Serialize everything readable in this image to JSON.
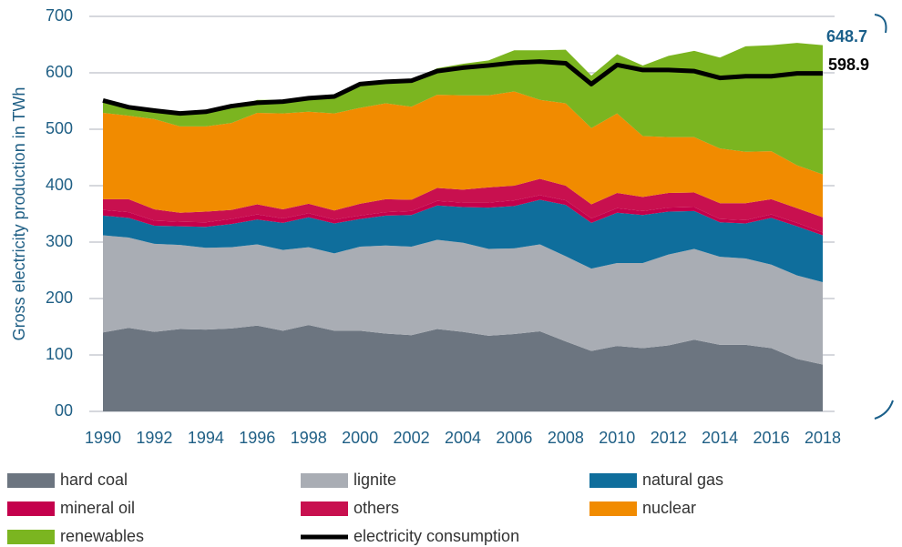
{
  "chart_data": {
    "type": "area",
    "stacked": true,
    "y_label": "Gross electricity production in TWh",
    "x": [
      1990,
      1991,
      1992,
      1993,
      1994,
      1995,
      1996,
      1997,
      1998,
      1999,
      2000,
      2001,
      2002,
      2003,
      2004,
      2005,
      2006,
      2007,
      2008,
      2009,
      2010,
      2011,
      2012,
      2013,
      2014,
      2015,
      2016,
      2017,
      2018
    ],
    "xlim": [
      1990,
      2018
    ],
    "xticks": [
      1990,
      1992,
      1994,
      1996,
      1998,
      2000,
      2002,
      2004,
      2006,
      2008,
      2010,
      2012,
      2014,
      2016,
      2018
    ],
    "ylim": [
      0,
      700
    ],
    "yticks": [
      {
        "value": 0,
        "label": "00"
      },
      100,
      200,
      300,
      400,
      500,
      600,
      700
    ],
    "grid": true,
    "series": [
      {
        "name": "hard coal",
        "color": "#6c7580",
        "values": [
          140,
          148,
          141,
          146,
          145,
          147,
          152,
          143,
          153,
          143,
          143,
          138,
          135,
          146,
          141,
          134,
          137,
          142,
          124,
          107,
          116,
          112,
          117,
          127,
          118,
          118,
          112,
          93,
          83
        ]
      },
      {
        "name": "lignite",
        "color": "#a9adb4",
        "values": [
          172,
          160,
          156,
          149,
          145,
          144,
          144,
          143,
          138,
          137,
          149,
          156,
          157,
          158,
          158,
          154,
          152,
          154,
          151,
          146,
          147,
          151,
          161,
          161,
          156,
          153,
          148,
          148,
          146
        ]
      },
      {
        "name": "natural gas",
        "color": "#0f6e9c",
        "values": [
          35,
          35,
          32,
          33,
          37,
          41,
          44,
          48,
          53,
          53,
          49,
          53,
          56,
          61,
          63,
          73,
          75,
          79,
          91,
          81,
          89,
          85,
          76,
          67,
          61,
          62,
          83,
          87,
          83
        ]
      },
      {
        "name": "mineral oil",
        "color": "#c4004c",
        "values": [
          10,
          10,
          9,
          8,
          8,
          9,
          9,
          8,
          7,
          7,
          6,
          6,
          7,
          8,
          8,
          9,
          10,
          8,
          8,
          8,
          8,
          7,
          7,
          7,
          6,
          6,
          6,
          6,
          5
        ]
      },
      {
        "name": "others",
        "color": "#c8104f",
        "values": [
          19,
          23,
          20,
          16,
          19,
          16,
          18,
          16,
          17,
          16,
          21,
          23,
          20,
          23,
          23,
          27,
          26,
          29,
          26,
          25,
          27,
          25,
          26,
          26,
          28,
          30,
          27,
          26,
          27
        ]
      },
      {
        "name": "nuclear",
        "color": "#f18b00",
        "values": [
          153,
          148,
          160,
          153,
          151,
          154,
          162,
          170,
          163,
          172,
          170,
          170,
          165,
          165,
          167,
          163,
          167,
          140,
          146,
          135,
          141,
          108,
          99,
          98,
          97,
          91,
          85,
          76,
          76
        ]
      },
      {
        "name": "renewables",
        "color": "#7bb520",
        "values": [
          19,
          16,
          19,
          21,
          23,
          26,
          23,
          24,
          25,
          28,
          38,
          40,
          46,
          47,
          56,
          62,
          73,
          88,
          95,
          93,
          105,
          125,
          144,
          153,
          161,
          187,
          188,
          217,
          229
        ]
      },
      {
        "name": "electricity consumption",
        "type": "line",
        "color": "#000000",
        "values": [
          551,
          539,
          533,
          528,
          531,
          541,
          547,
          549,
          555,
          558,
          580,
          584,
          586,
          603,
          609,
          613,
          618,
          620,
          617,
          580,
          614,
          605,
          605,
          603,
          591,
          594,
          594,
          599,
          599
        ]
      }
    ],
    "annotations": [
      {
        "text": "648.7",
        "color": "#1a5f8a"
      },
      {
        "text": "598.9",
        "color": "#000000"
      }
    ]
  }
}
